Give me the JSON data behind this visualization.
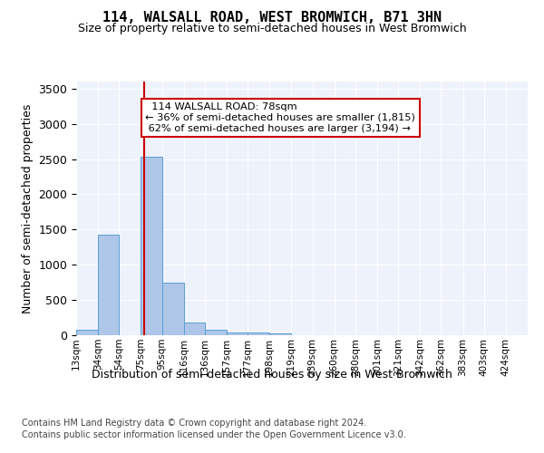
{
  "title": "114, WALSALL ROAD, WEST BROMWICH, B71 3HN",
  "subtitle": "Size of property relative to semi-detached houses in West Bromwich",
  "xlabel": "Distribution of semi-detached houses by size in West Bromwich",
  "ylabel": "Number of semi-detached properties",
  "property_label": "114 WALSALL ROAD: 78sqm",
  "pct_smaller": 36,
  "count_smaller": 1815,
  "pct_larger": 62,
  "count_larger": 3194,
  "bin_labels": [
    "13sqm",
    "34sqm",
    "54sqm",
    "75sqm",
    "95sqm",
    "116sqm",
    "136sqm",
    "157sqm",
    "177sqm",
    "198sqm",
    "219sqm",
    "239sqm",
    "260sqm",
    "280sqm",
    "301sqm",
    "321sqm",
    "342sqm",
    "362sqm",
    "383sqm",
    "403sqm",
    "424sqm"
  ],
  "bin_edges": [
    13,
    34,
    54,
    75,
    95,
    116,
    136,
    157,
    177,
    198,
    219,
    239,
    260,
    280,
    301,
    321,
    342,
    362,
    383,
    403,
    424,
    445
  ],
  "bar_values": [
    75,
    1430,
    0,
    2530,
    740,
    185,
    80,
    45,
    35,
    30,
    0,
    0,
    0,
    0,
    0,
    0,
    0,
    0,
    0,
    0,
    0
  ],
  "bar_color": "#aec6e8",
  "bar_edge_color": "#5a9fd4",
  "vline_color": "#cc0000",
  "vline_x": 78,
  "background_color": "#eef2fb",
  "ylim": [
    0,
    3600
  ],
  "yticks": [
    0,
    500,
    1000,
    1500,
    2000,
    2500,
    3000,
    3500
  ],
  "footer_line1": "Contains HM Land Registry data © Crown copyright and database right 2024.",
  "footer_line2": "Contains public sector information licensed under the Open Government Licence v3.0."
}
